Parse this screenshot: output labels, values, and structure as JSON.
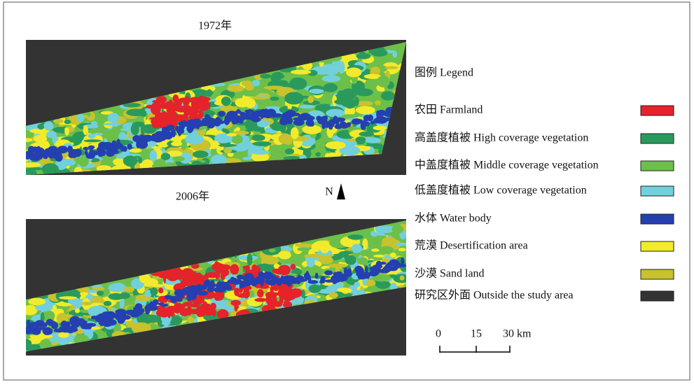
{
  "maps": [
    {
      "title": "1972年"
    },
    {
      "title": "2006年"
    }
  ],
  "north_arrow": "N",
  "legend": {
    "title": "图例 Legend",
    "items": [
      {
        "label": "农田 Farmland",
        "color": "#e5232b"
      },
      {
        "label": "高盖度植被 High coverage vegetation",
        "color": "#2a9a5c"
      },
      {
        "label": "中盖度植被 Middle coverage vegetation",
        "color": "#6cc04a"
      },
      {
        "label": "低盖度植被 Low coverage vegetation",
        "color": "#72d0dc"
      },
      {
        "label": "水体 Water body",
        "color": "#2440b0"
      },
      {
        "label": "荒漠 Desertification area",
        "color": "#f2ea2c"
      },
      {
        "label": "沙漠 Sand land",
        "color": "#c8c22c"
      },
      {
        "label": "研究区外面 Outside the study area",
        "color": "#333333"
      }
    ]
  },
  "scale_bar": {
    "labels": [
      "0",
      "15",
      "30 km"
    ]
  }
}
